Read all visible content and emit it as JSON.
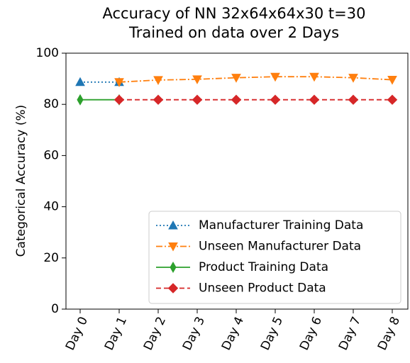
{
  "chart_data": {
    "type": "line",
    "title": [
      "Accuracy of NN 32x64x64x30 t=30",
      "Trained on data over 2 Days"
    ],
    "ylabel": "Categorical Accuracy (%)",
    "categories": [
      "Day 0",
      "Day 1",
      "Day 2",
      "Day 3",
      "Day 4",
      "Day 5",
      "Day 6",
      "Day 7",
      "Day 8"
    ],
    "series": [
      {
        "name": "Manufacturer Training Data",
        "color": "#1f77b4",
        "marker": "triangle-up",
        "dash": "dotted",
        "values": [
          88.7,
          88.7,
          null,
          null,
          null,
          null,
          null,
          null,
          null
        ]
      },
      {
        "name": "Unseen Manufacturer Data",
        "color": "#ff7f0e",
        "marker": "triangle-down",
        "dash": "dashdot",
        "values": [
          null,
          88.7,
          89.5,
          89.8,
          90.4,
          90.8,
          90.8,
          90.4,
          89.6
        ]
      },
      {
        "name": "Product Training Data",
        "color": "#2ca02c",
        "marker": "thin-diamond",
        "dash": "solid",
        "values": [
          81.8,
          81.8,
          null,
          null,
          null,
          null,
          null,
          null,
          null
        ]
      },
      {
        "name": "Unseen Product Data",
        "color": "#d62728",
        "marker": "diamond",
        "dash": "dashed",
        "values": [
          null,
          81.8,
          81.8,
          81.8,
          81.8,
          81.8,
          81.8,
          81.8,
          81.8
        ]
      }
    ],
    "ylim": [
      0,
      100
    ],
    "yticks": [
      0,
      20,
      40,
      60,
      80,
      100
    ],
    "grid": false,
    "legend": "lower right"
  }
}
